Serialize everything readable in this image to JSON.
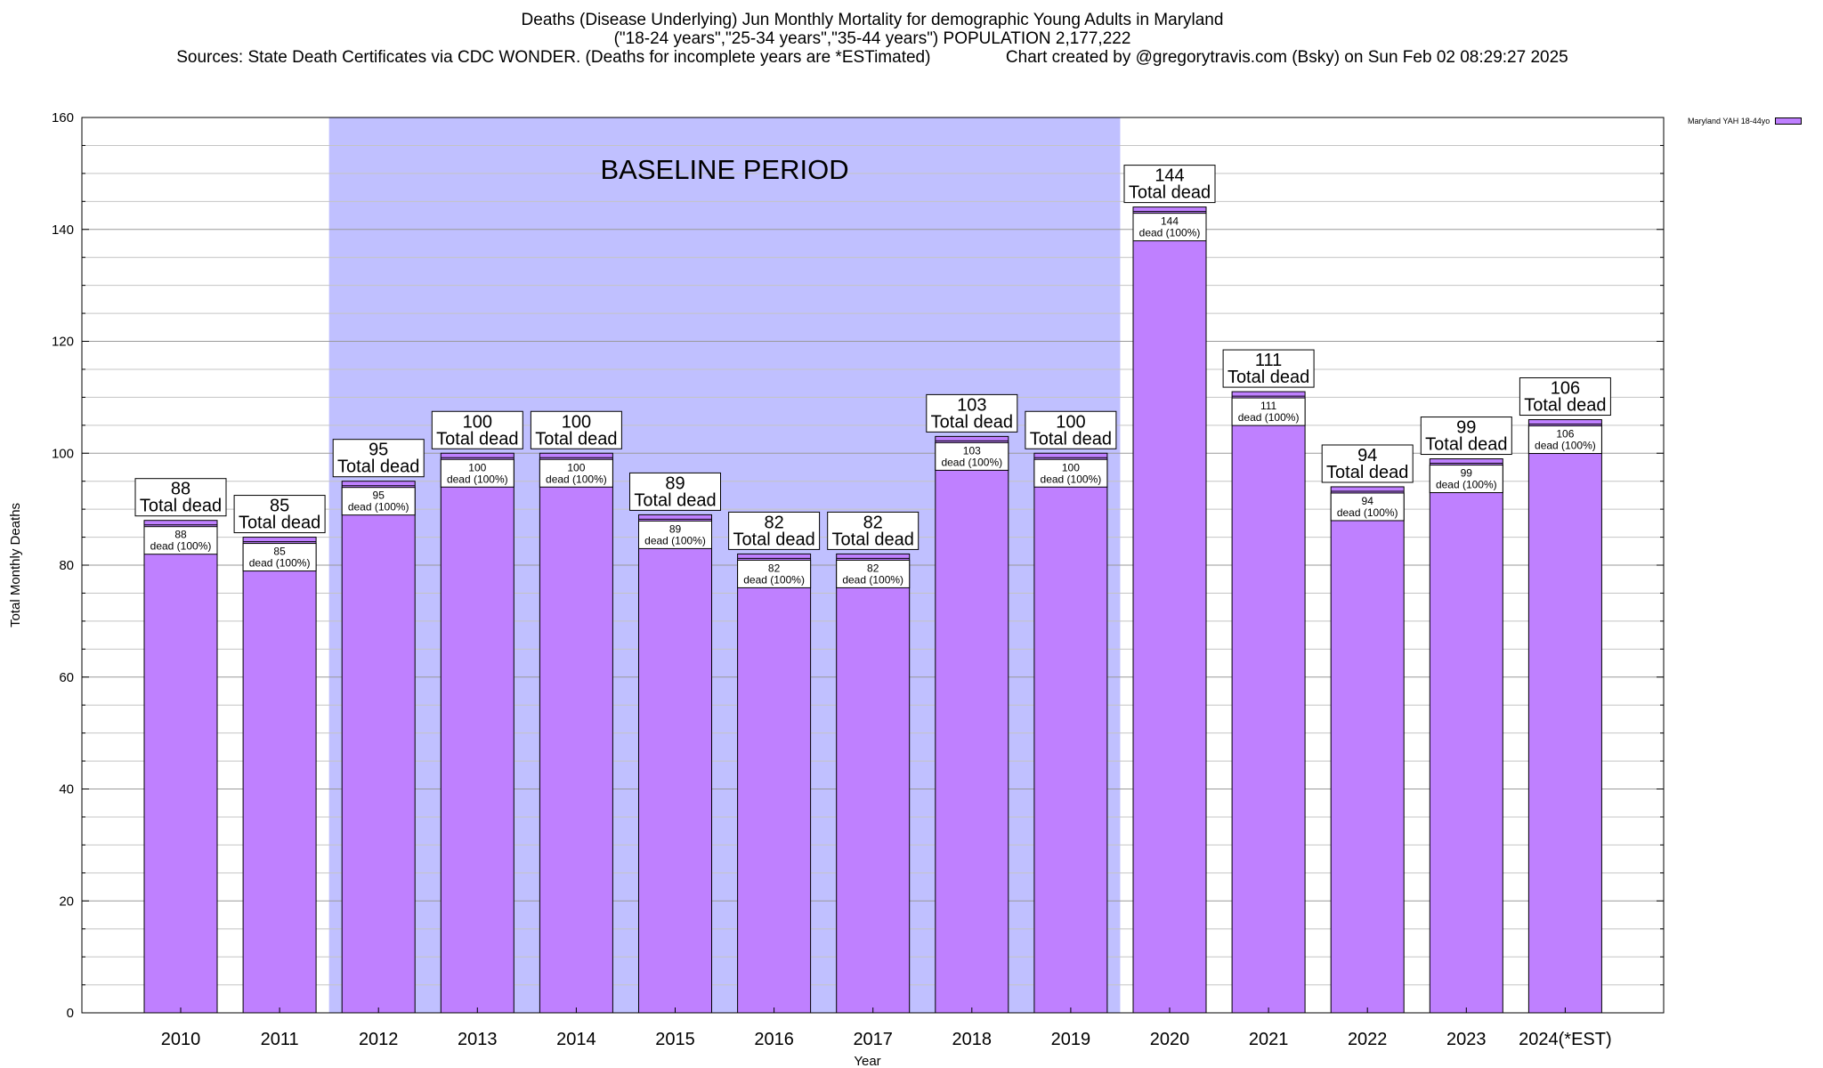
{
  "header": {
    "title_line1": "Deaths (Disease Underlying) Jun Monthly Mortality for demographic Young Adults in Maryland",
    "title_line2": "(\"18-24 years\",\"25-34 years\",\"35-44 years\") POPULATION 2,177,222",
    "sources": "Sources: State Death Certificates via CDC WONDER. (Deaths for incomplete years are *ESTimated)",
    "credit": "Chart created by @gregorytravis.com (Bsky) on Sun Feb 02 08:29:27 2025"
  },
  "legend": {
    "label": "Maryland YAH 18-44yo",
    "color": "#bf80ff"
  },
  "chart_data": {
    "type": "bar",
    "title": "Deaths (Disease Underlying) Jun Monthly Mortality for demographic Young Adults in Maryland",
    "xlabel": "Year",
    "ylabel": "Total Monthly Deaths",
    "ylim": [
      0,
      160
    ],
    "yticks": [
      0,
      20,
      40,
      60,
      80,
      100,
      120,
      140,
      160
    ],
    "grid": true,
    "legend_position": "top-right",
    "categories": [
      "2010",
      "2011",
      "2012",
      "2013",
      "2014",
      "2015",
      "2016",
      "2017",
      "2018",
      "2019",
      "2020",
      "2021",
      "2022",
      "2023",
      "2024(*EST)"
    ],
    "series": [
      {
        "name": "Maryland YAH 18-44yo",
        "color": "#bf80ff",
        "values": [
          88,
          85,
          95,
          100,
          100,
          89,
          82,
          82,
          103,
          100,
          144,
          111,
          94,
          99,
          106
        ]
      }
    ],
    "total_label_suffix": "Total dead",
    "inner_label_suffix": "dead (100%)",
    "baseline": {
      "label": "BASELINE PERIOD",
      "from": "2012",
      "to": "2019",
      "color": "#c0c0ff"
    }
  }
}
